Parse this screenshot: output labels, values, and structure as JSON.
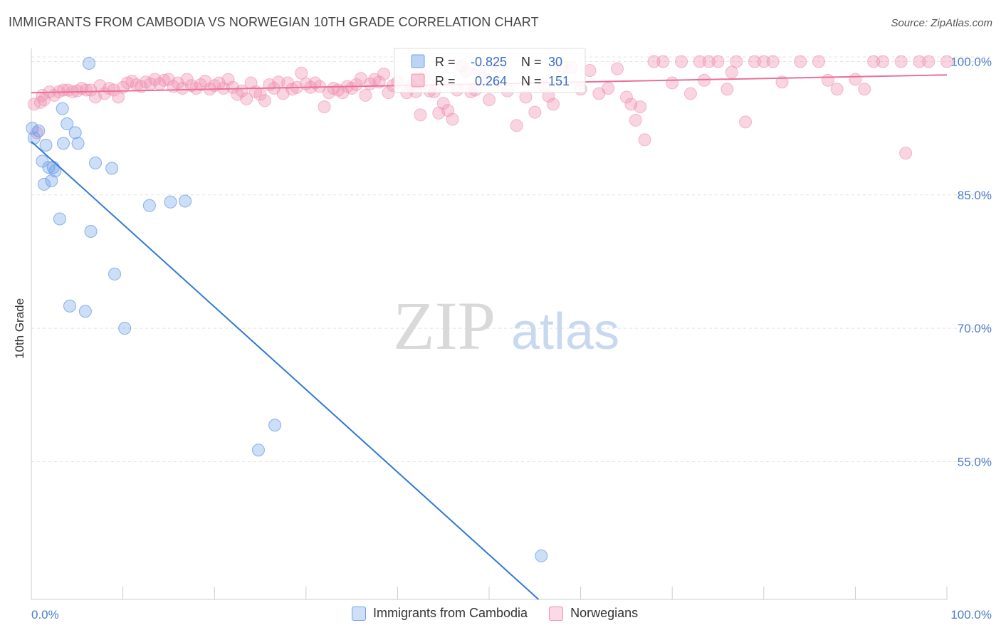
{
  "title": "IMMIGRANTS FROM CAMBODIA VS NORWEGIAN 10TH GRADE CORRELATION CHART",
  "source": "Source: ZipAtlas.com",
  "watermark": {
    "zip": "ZIP",
    "atlas": "atlas"
  },
  "chart_data": {
    "type": "scatter",
    "ylabel": "10th Grade",
    "xlim": [
      0,
      100
    ],
    "ylim": [
      39.5,
      101
    ],
    "x_tick_labels": [
      "0.0%",
      "100.0%"
    ],
    "y_ticks": [
      100,
      85,
      70,
      55
    ],
    "y_tick_labels": [
      "100.0%",
      "85.0%",
      "70.0%",
      "55.0%"
    ],
    "colors": {
      "cambodia": "#6fa0e8",
      "cambodia_line": "#2f7ad6",
      "norwegians": "#f090b0",
      "norwegians_line": "#e8709a",
      "tick_label": "#4a7cc9"
    },
    "stats": [
      {
        "r_label": "R =",
        "r": "-0.825",
        "n_label": "N =",
        "n": "30"
      },
      {
        "r_label": "R =",
        "r": "0.264",
        "n_label": "N =",
        "n": "151"
      }
    ],
    "series": [
      {
        "name": "Immigrants from Cambodia",
        "trend": {
          "x": [
            0,
            55.4
          ],
          "y": [
            91.0,
            39.5
          ]
        },
        "points": [
          [
            0.1,
            92.5
          ],
          [
            0.3,
            91.4
          ],
          [
            0.8,
            92.2
          ],
          [
            1.2,
            88.8
          ],
          [
            1.4,
            86.2
          ],
          [
            1.6,
            90.6
          ],
          [
            1.9,
            88.1
          ],
          [
            2.2,
            86.6
          ],
          [
            2.4,
            88.1
          ],
          [
            2.6,
            87.7
          ],
          [
            3.1,
            82.3
          ],
          [
            3.4,
            94.7
          ],
          [
            3.5,
            90.8
          ],
          [
            3.9,
            93.0
          ],
          [
            4.2,
            72.5
          ],
          [
            4.8,
            92.0
          ],
          [
            5.1,
            90.8
          ],
          [
            5.9,
            71.9
          ],
          [
            6.3,
            99.8
          ],
          [
            6.5,
            80.9
          ],
          [
            7.0,
            88.6
          ],
          [
            8.8,
            88.0
          ],
          [
            9.1,
            76.1
          ],
          [
            10.2,
            70.0
          ],
          [
            12.9,
            83.8
          ],
          [
            15.2,
            84.2
          ],
          [
            16.8,
            84.3
          ],
          [
            24.8,
            56.3
          ],
          [
            26.6,
            59.1
          ],
          [
            55.7,
            44.4
          ]
        ]
      },
      {
        "name": "Norwegians",
        "trend": {
          "x": [
            0,
            100
          ],
          "y": [
            96.5,
            98.5
          ]
        },
        "points": [
          [
            0.3,
            95.2
          ],
          [
            0.6,
            92.0
          ],
          [
            1.0,
            95.4
          ],
          [
            1.4,
            95.7
          ],
          [
            2.0,
            96.6
          ],
          [
            2.5,
            96.2
          ],
          [
            3.0,
            96.6
          ],
          [
            3.5,
            96.8
          ],
          [
            4.0,
            96.8
          ],
          [
            4.5,
            96.6
          ],
          [
            5.0,
            96.7
          ],
          [
            5.5,
            97.0
          ],
          [
            6.0,
            96.8
          ],
          [
            6.5,
            96.8
          ],
          [
            7.0,
            96.0
          ],
          [
            7.5,
            97.3
          ],
          [
            8.0,
            96.4
          ],
          [
            8.5,
            97.0
          ],
          [
            9.0,
            96.8
          ],
          [
            9.5,
            96.0
          ],
          [
            10.0,
            97.1
          ],
          [
            10.5,
            97.6
          ],
          [
            11.0,
            97.8
          ],
          [
            11.5,
            97.4
          ],
          [
            12.0,
            97.2
          ],
          [
            12.5,
            97.7
          ],
          [
            13.0,
            97.5
          ],
          [
            13.5,
            98.0
          ],
          [
            14.0,
            97.5
          ],
          [
            14.5,
            97.9
          ],
          [
            15.0,
            98.0
          ],
          [
            15.5,
            97.2
          ],
          [
            16.0,
            97.6
          ],
          [
            16.5,
            97.0
          ],
          [
            17.0,
            98.0
          ],
          [
            17.5,
            97.3
          ],
          [
            18.0,
            97.0
          ],
          [
            18.5,
            97.4
          ],
          [
            19.0,
            97.8
          ],
          [
            19.5,
            96.9
          ],
          [
            20.0,
            97.3
          ],
          [
            20.5,
            97.6
          ],
          [
            21.0,
            97.0
          ],
          [
            21.5,
            98.0
          ],
          [
            22.0,
            97.1
          ],
          [
            22.5,
            96.3
          ],
          [
            23.0,
            96.7
          ],
          [
            23.5,
            95.8
          ],
          [
            24.0,
            97.6
          ],
          [
            24.5,
            96.6
          ],
          [
            25.0,
            96.3
          ],
          [
            25.5,
            95.6
          ],
          [
            26.0,
            97.4
          ],
          [
            26.5,
            97.0
          ],
          [
            27.0,
            97.7
          ],
          [
            27.5,
            96.4
          ],
          [
            28.0,
            97.6
          ],
          [
            28.5,
            96.9
          ],
          [
            29.0,
            97.1
          ],
          [
            29.5,
            98.7
          ],
          [
            30.0,
            97.5
          ],
          [
            30.5,
            97.1
          ],
          [
            31.0,
            97.6
          ],
          [
            31.5,
            97.2
          ],
          [
            32.0,
            94.9
          ],
          [
            32.5,
            96.5
          ],
          [
            33.0,
            97.0
          ],
          [
            33.5,
            96.8
          ],
          [
            34.0,
            96.5
          ],
          [
            34.5,
            97.2
          ],
          [
            35.0,
            97.0
          ],
          [
            35.5,
            97.4
          ],
          [
            36.0,
            98.1
          ],
          [
            36.5,
            96.2
          ],
          [
            37.0,
            97.5
          ],
          [
            37.5,
            98.0
          ],
          [
            38.0,
            97.7
          ],
          [
            38.5,
            98.6
          ],
          [
            39.0,
            96.5
          ],
          [
            39.5,
            97.3
          ],
          [
            40.0,
            97.7
          ],
          [
            41.0,
            96.5
          ],
          [
            41.5,
            97.3
          ],
          [
            42.0,
            96.6
          ],
          [
            42.5,
            94.0
          ],
          [
            43.0,
            98.4
          ],
          [
            43.5,
            96.7
          ],
          [
            44.0,
            96.6
          ],
          [
            44.5,
            94.2
          ],
          [
            45.0,
            95.3
          ],
          [
            45.5,
            94.5
          ],
          [
            46.0,
            93.5
          ],
          [
            46.5,
            96.8
          ],
          [
            47.0,
            99.5
          ],
          [
            47.5,
            98.9
          ],
          [
            48.0,
            96.6
          ],
          [
            48.5,
            96.8
          ],
          [
            49.0,
            99.2
          ],
          [
            49.5,
            98.1
          ],
          [
            50.0,
            95.7
          ],
          [
            51.0,
            99.4
          ],
          [
            52.0,
            96.7
          ],
          [
            53.0,
            92.8
          ],
          [
            54.0,
            96.0
          ],
          [
            55.0,
            94.3
          ],
          [
            56.0,
            97.2
          ],
          [
            56.5,
            96.1
          ],
          [
            57.0,
            95.2
          ],
          [
            58.0,
            99.5
          ],
          [
            59.0,
            99.3
          ],
          [
            60.0,
            96.9
          ],
          [
            61.0,
            99.0
          ],
          [
            62.0,
            96.4
          ],
          [
            63.0,
            97.0
          ],
          [
            64.0,
            99.2
          ],
          [
            65.0,
            96.0
          ],
          [
            65.5,
            95.2
          ],
          [
            66.0,
            93.4
          ],
          [
            66.5,
            94.9
          ],
          [
            67.0,
            91.2
          ],
          [
            68.0,
            100.0
          ],
          [
            69.0,
            100.0
          ],
          [
            70.0,
            97.6
          ],
          [
            71.0,
            100.0
          ],
          [
            72.0,
            96.4
          ],
          [
            73.0,
            100.0
          ],
          [
            73.5,
            97.9
          ],
          [
            74.0,
            100.0
          ],
          [
            75.0,
            100.0
          ],
          [
            76.0,
            96.9
          ],
          [
            76.5,
            98.8
          ],
          [
            77.0,
            100.0
          ],
          [
            78.0,
            93.2
          ],
          [
            79.0,
            100.0
          ],
          [
            80.0,
            100.0
          ],
          [
            81.0,
            100.0
          ],
          [
            82.0,
            97.7
          ],
          [
            84.0,
            100.0
          ],
          [
            86.0,
            100.0
          ],
          [
            87.0,
            97.9
          ],
          [
            88.0,
            96.9
          ],
          [
            90.0,
            98.0
          ],
          [
            91.0,
            96.9
          ],
          [
            92.0,
            100.0
          ],
          [
            93.0,
            100.0
          ],
          [
            95.0,
            100.0
          ],
          [
            95.5,
            89.7
          ],
          [
            97.0,
            100.0
          ],
          [
            98.0,
            100.0
          ],
          [
            100.0,
            100.0
          ],
          [
            1.2,
            96.2
          ]
        ]
      }
    ]
  }
}
